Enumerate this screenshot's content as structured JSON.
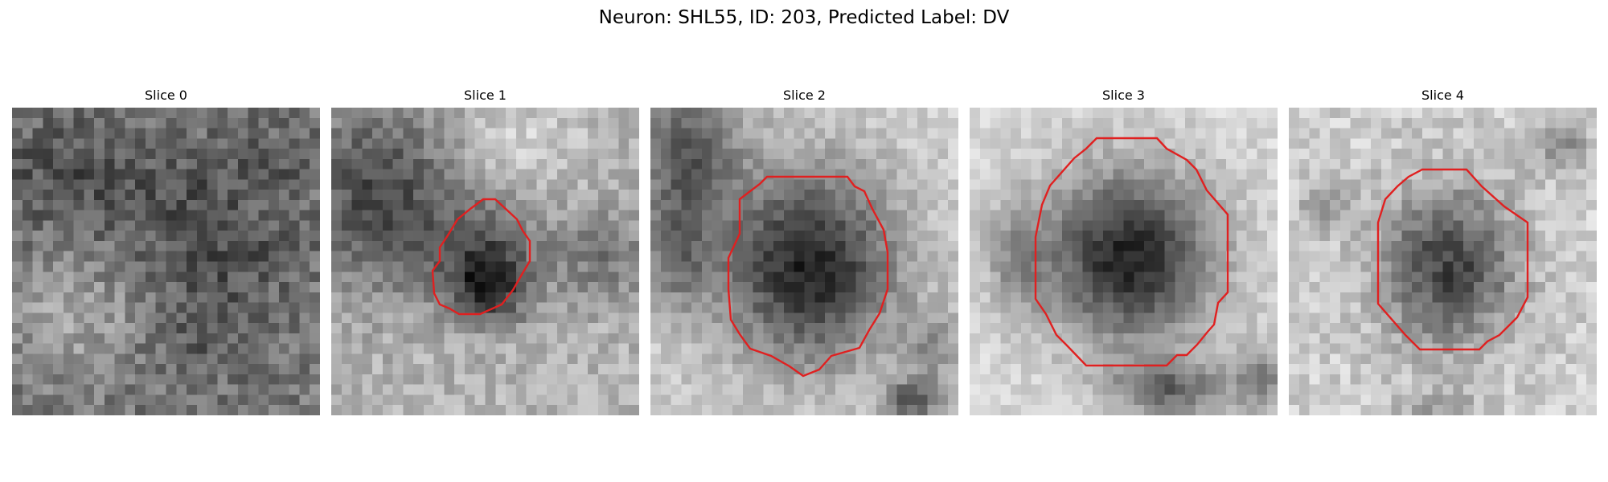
{
  "figure": {
    "title": "Neuron: SHL55, ID: 203, Predicted Label: DV"
  },
  "colors": {
    "contour": "#e02020"
  },
  "slices": [
    {
      "title": "Slice 0"
    },
    {
      "title": "Slice 1"
    },
    {
      "title": "Slice 2"
    },
    {
      "title": "Slice 3"
    },
    {
      "title": "Slice 4"
    }
  ]
}
